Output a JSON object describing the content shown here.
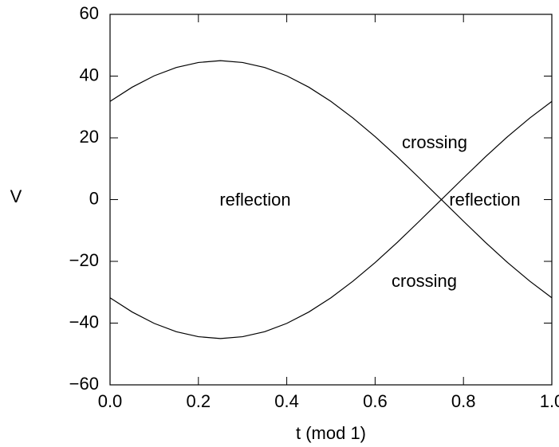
{
  "chart_data": {
    "type": "line",
    "xlabel": "t (mod 1)",
    "ylabel": "V",
    "x": [
      0,
      0.05,
      0.1,
      0.15,
      0.2,
      0.25,
      0.3,
      0.35,
      0.4,
      0.45,
      0.5,
      0.55,
      0.6,
      0.65,
      0.7,
      0.75,
      0.8,
      0.85,
      0.9,
      0.95,
      1.0
    ],
    "series": [
      {
        "color": "#000000",
        "values": [
          31.8,
          36.4,
          40.1,
          42.8,
          44.4,
          45.0,
          44.4,
          42.8,
          40.1,
          36.4,
          31.8,
          26.4,
          20.4,
          13.9,
          7.0,
          0,
          7.0,
          13.9,
          20.4,
          26.4,
          31.8
        ]
      },
      {
        "color": "#000000",
        "values": [
          -31.8,
          -36.4,
          -40.1,
          -42.8,
          -44.4,
          -45.0,
          -44.4,
          -42.8,
          -40.1,
          -36.4,
          -31.8,
          -26.4,
          -20.4,
          -13.9,
          -7.0,
          0,
          -7.0,
          -13.9,
          -20.4,
          -26.4,
          -31.8
        ]
      }
    ],
    "annotations": [
      "crossing",
      "reflection",
      "reflection",
      "crossing"
    ],
    "xlim": [
      0,
      1.0
    ],
    "xticks": [
      {
        "value": 0,
        "label": "0.0"
      },
      0.2,
      0.4,
      0.6,
      0.8,
      {
        "value": 1.0,
        "label": "1.0"
      }
    ],
    "ylim": [
      -60,
      60
    ],
    "yticks": [
      {
        "value": -60,
        "label": "−60"
      },
      {
        "value": -40,
        "label": "−40"
      },
      {
        "value": -20,
        "label": "−20"
      },
      0,
      20,
      40,
      60
    ]
  }
}
